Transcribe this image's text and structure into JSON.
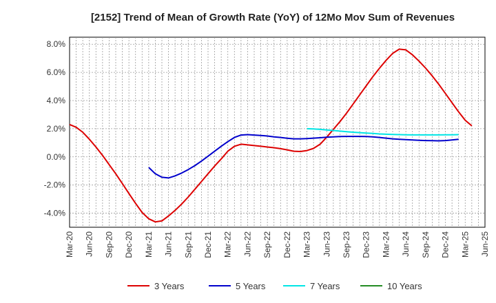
{
  "chart_data": {
    "type": "line",
    "title": "[2152]  Trend of Mean of Growth Rate (YoY) of 12Mo Mov Sum of Revenues",
    "xlabel": "",
    "ylabel": "",
    "ylim": [
      -5,
      8.5
    ],
    "yticks": [
      8,
      6,
      4,
      2,
      0,
      -2,
      -4
    ],
    "ytick_labels": [
      "8.0%",
      "6.0%",
      "4.0%",
      "2.0%",
      "0.0%",
      "-2.0%",
      "-4.0%"
    ],
    "xtick_labels": [
      "Mar-20",
      "Jun-20",
      "Sep-20",
      "Dec-20",
      "Mar-21",
      "Jun-21",
      "Sep-21",
      "Dec-21",
      "Mar-22",
      "Jun-22",
      "Sep-22",
      "Dec-22",
      "Mar-23",
      "Jun-23",
      "Sep-23",
      "Dec-23",
      "Mar-24",
      "Jun-24",
      "Sep-24",
      "Dec-24",
      "Mar-25",
      "Jun-25"
    ],
    "x_start": "Mar-20",
    "grid": true,
    "legend_position": "bottom",
    "series": [
      {
        "name": "3 Years",
        "color": "#dd0000",
        "start_index": 0,
        "values": [
          2.3,
          2.1,
          1.75,
          1.25,
          0.7,
          0.1,
          -0.55,
          -1.2,
          -1.9,
          -2.6,
          -3.3,
          -3.95,
          -4.4,
          -4.62,
          -4.55,
          -4.2,
          -3.8,
          -3.35,
          -2.85,
          -2.3,
          -1.75,
          -1.2,
          -0.65,
          -0.15,
          0.4,
          0.75,
          0.9,
          0.85,
          0.8,
          0.75,
          0.7,
          0.65,
          0.58,
          0.5,
          0.4,
          0.38,
          0.45,
          0.6,
          0.9,
          1.4,
          1.95,
          2.5,
          3.1,
          3.75,
          4.4,
          5.05,
          5.7,
          6.3,
          6.85,
          7.35,
          7.65,
          7.6,
          7.25,
          6.8,
          6.3,
          5.75,
          5.15,
          4.5,
          3.85,
          3.2,
          2.6,
          2.2
        ]
      },
      {
        "name": "5 Years",
        "color": "#0000cc",
        "start_index": 12,
        "values": [
          -0.75,
          -1.2,
          -1.45,
          -1.5,
          -1.35,
          -1.15,
          -0.9,
          -0.62,
          -0.3,
          0.05,
          0.4,
          0.75,
          1.08,
          1.38,
          1.55,
          1.58,
          1.55,
          1.52,
          1.48,
          1.42,
          1.38,
          1.32,
          1.28,
          1.28,
          1.3,
          1.33,
          1.36,
          1.4,
          1.42,
          1.44,
          1.45,
          1.45,
          1.45,
          1.44,
          1.42,
          1.38,
          1.33,
          1.28,
          1.25,
          1.22,
          1.2,
          1.18,
          1.16,
          1.15,
          1.14,
          1.16,
          1.2,
          1.25
        ]
      },
      {
        "name": "7 Years",
        "color": "#00e5e5",
        "start_index": 36,
        "values": [
          2.0,
          1.98,
          1.95,
          1.91,
          1.87,
          1.83,
          1.79,
          1.75,
          1.72,
          1.69,
          1.66,
          1.63,
          1.61,
          1.59,
          1.58,
          1.57,
          1.56,
          1.56,
          1.56,
          1.56,
          1.56,
          1.57,
          1.57,
          1.58
        ]
      },
      {
        "name": "10 Years",
        "color": "#228b22",
        "start_index": 0,
        "values": []
      }
    ]
  }
}
